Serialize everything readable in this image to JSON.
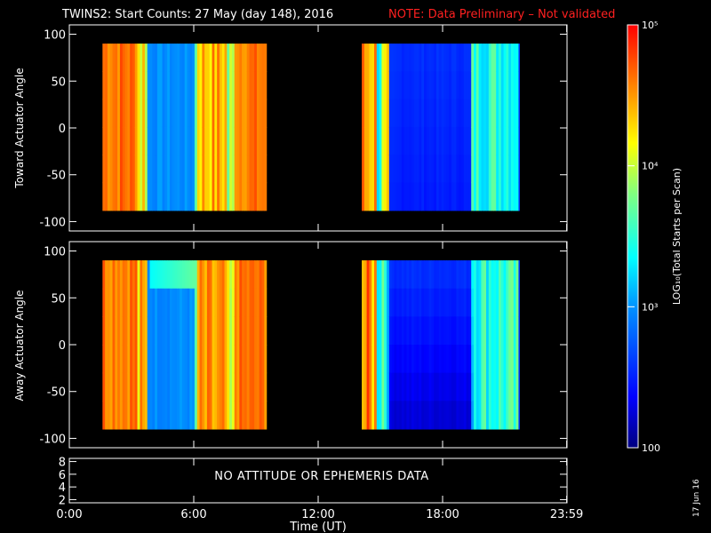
{
  "title": "TWINS2: Start Counts: 27 May (day 148), 2016",
  "note": "NOTE: Data Preliminary – Not validated",
  "date_stamp": "17 Jun 16",
  "no_data_message": "NO ATTITUDE OR EPHEMERIS DATA",
  "colorbar": {
    "label": "LOG₁₀(Total Starts per Scan)",
    "tick_labels": [
      "10⁵",
      "10⁴",
      "10³",
      "100"
    ],
    "tick_values": [
      100000,
      10000,
      1000,
      100
    ],
    "scale": "log",
    "range": [
      100,
      100000
    ]
  },
  "chart_data": [
    {
      "type": "heatmap",
      "name": "toward",
      "ylabel": "Toward Actuator Angle",
      "xlabel": "",
      "ylim": [
        -110,
        110
      ],
      "y_ticks": [
        "100",
        "50",
        "0",
        "-50",
        "-100"
      ],
      "y_tick_values": [
        100,
        50,
        0,
        -50,
        -100
      ],
      "x_range_hours": [
        0,
        24
      ],
      "data_blocks_hours": [
        [
          1.6,
          9.5
        ],
        [
          14.1,
          21.7
        ]
      ],
      "data_y_range": [
        -88,
        90
      ],
      "count_scale": "log",
      "count_range": [
        100,
        100000
      ]
    },
    {
      "type": "heatmap",
      "name": "away",
      "ylabel": "Away Actuator Angle",
      "xlabel": "",
      "ylim": [
        -110,
        110
      ],
      "y_ticks": [
        "100",
        "50",
        "0",
        "-50",
        "-100"
      ],
      "y_tick_values": [
        100,
        50,
        0,
        -50,
        -100
      ],
      "x_range_hours": [
        0,
        24
      ],
      "data_blocks_hours": [
        [
          1.6,
          9.5
        ],
        [
          14.1,
          21.7
        ]
      ],
      "data_y_range": [
        -90,
        90
      ],
      "count_scale": "log",
      "count_range": [
        100,
        100000
      ]
    },
    {
      "type": "line",
      "name": "attitude",
      "ylabel": "",
      "xlabel": "Time (UT)",
      "ylim": [
        1.5,
        8.5
      ],
      "y_ticks": [
        "8",
        "6",
        "4",
        "2"
      ],
      "y_tick_values": [
        8,
        6,
        4,
        2
      ],
      "x_ticks": [
        "0:00",
        "6:00",
        "12:00",
        "18:00",
        "23:59"
      ],
      "x_tick_hours": [
        0,
        6,
        12,
        18,
        23.983
      ],
      "series": []
    }
  ]
}
